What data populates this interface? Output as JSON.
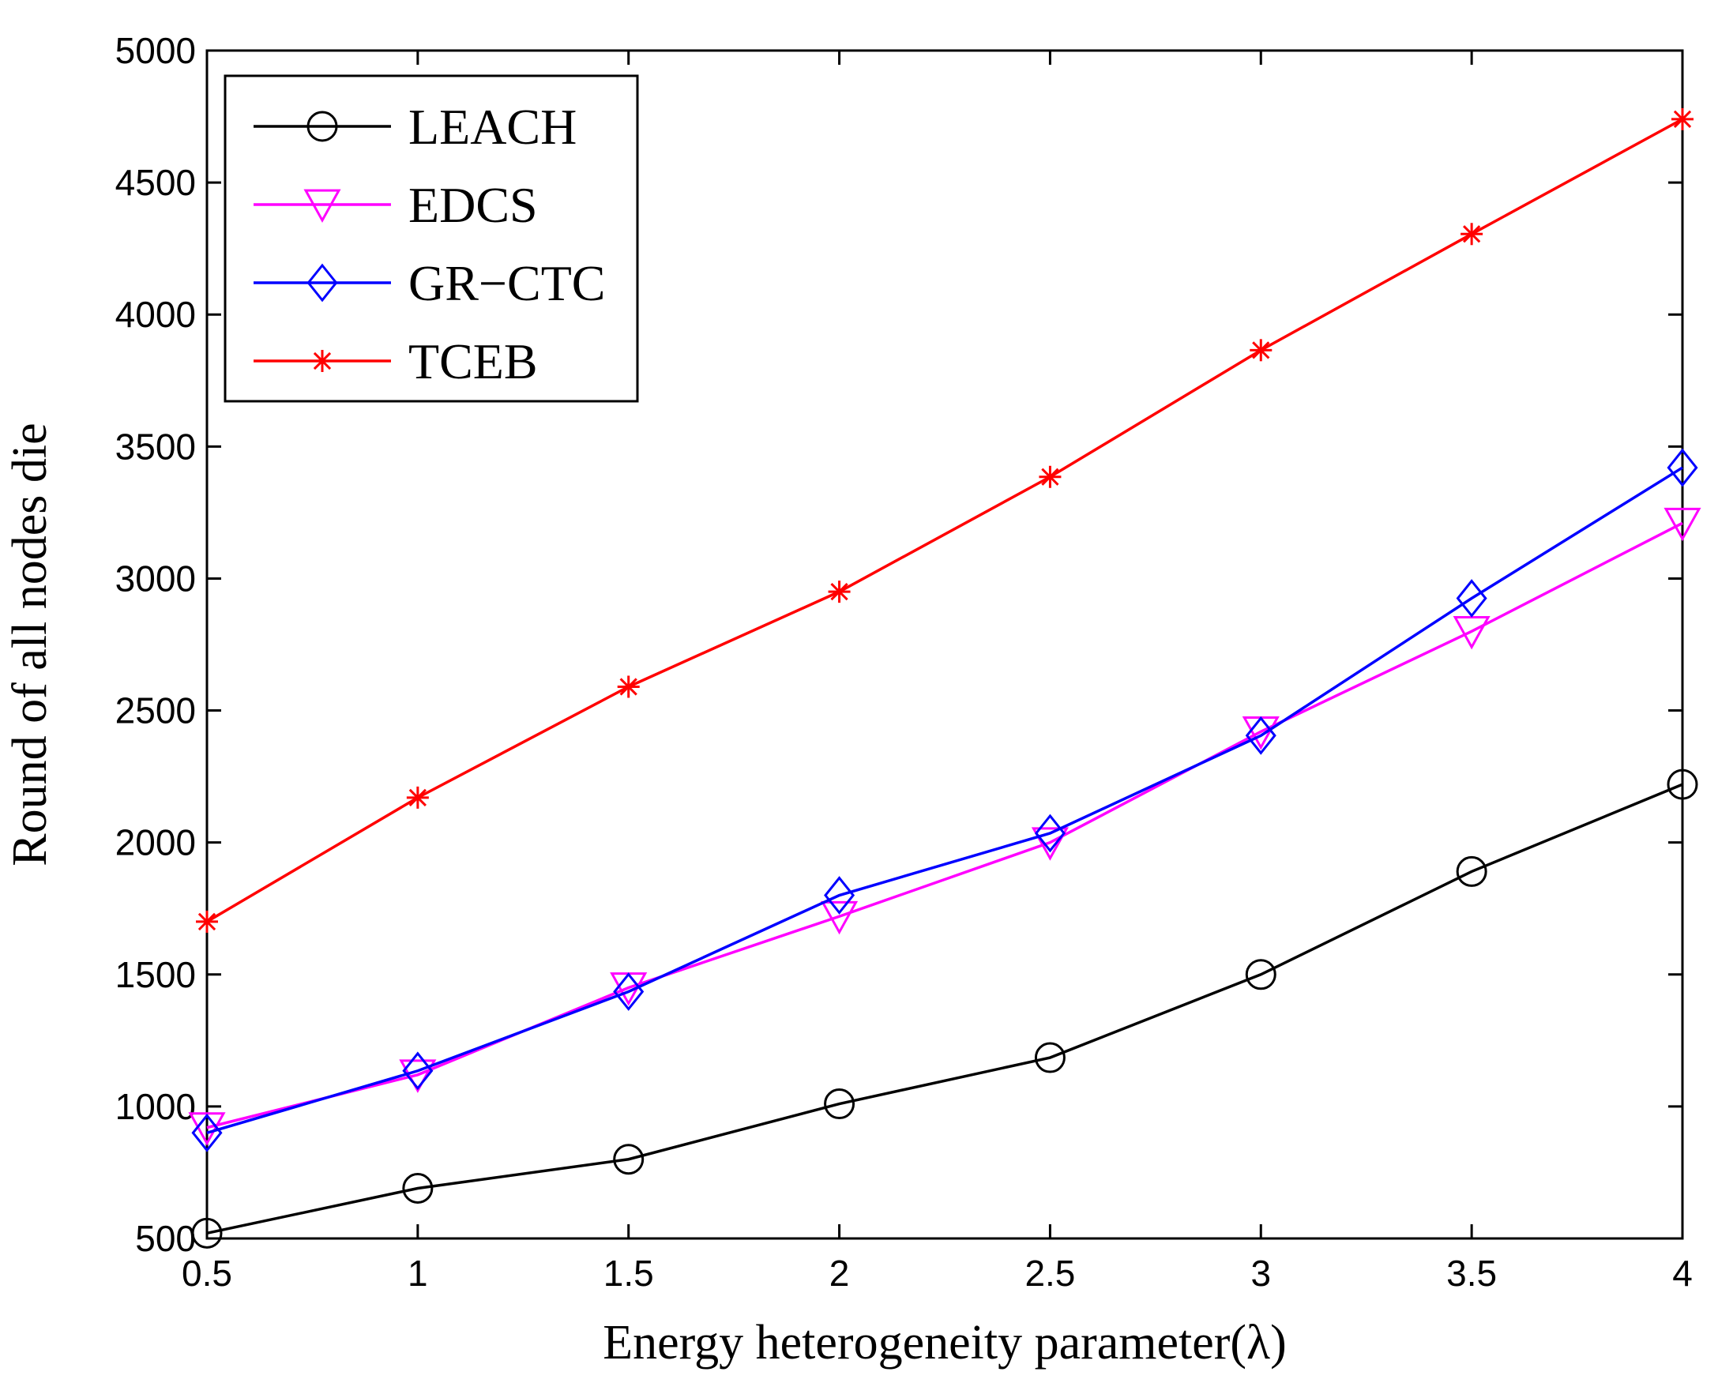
{
  "chart_data": {
    "type": "line",
    "title": "",
    "xlabel": "Energy heterogeneity parameter(λ)",
    "ylabel": "Round of all nodes die",
    "x": [
      0.5,
      1,
      1.5,
      2,
      2.5,
      3,
      3.5,
      4
    ],
    "xlim": [
      0.5,
      4
    ],
    "ylim": [
      500,
      5000
    ],
    "xticks": [
      0.5,
      1,
      1.5,
      2,
      2.5,
      3,
      3.5,
      4
    ],
    "xtick_labels": [
      "0.5",
      "1",
      "1.5",
      "2",
      "2.5",
      "3",
      "3.5",
      "4"
    ],
    "yticks": [
      500,
      1000,
      1500,
      2000,
      2500,
      3000,
      3500,
      4000,
      4500,
      5000
    ],
    "ytick_labels": [
      "500",
      "1000",
      "1500",
      "2000",
      "2500",
      "3000",
      "3500",
      "4000",
      "4500",
      "5000"
    ],
    "grid": false,
    "legend_position": "top-left",
    "series": [
      {
        "name": "LEACH",
        "color": "#000000",
        "marker": "circle",
        "values": [
          520,
          690,
          800,
          1010,
          1185,
          1500,
          1890,
          2220
        ]
      },
      {
        "name": "EDCS",
        "color": "#ff00ff",
        "marker": "triangle-down",
        "values": [
          920,
          1120,
          1450,
          1720,
          2000,
          2420,
          2800,
          3210
        ]
      },
      {
        "name": "GR−CTC",
        "color": "#0000ff",
        "marker": "diamond",
        "values": [
          900,
          1135,
          1435,
          1800,
          2035,
          2405,
          2925,
          3420
        ]
      },
      {
        "name": "TCEB",
        "color": "#ff0000",
        "marker": "asterisk",
        "values": [
          1700,
          2170,
          2590,
          2950,
          3385,
          3865,
          4305,
          4740
        ]
      }
    ]
  }
}
